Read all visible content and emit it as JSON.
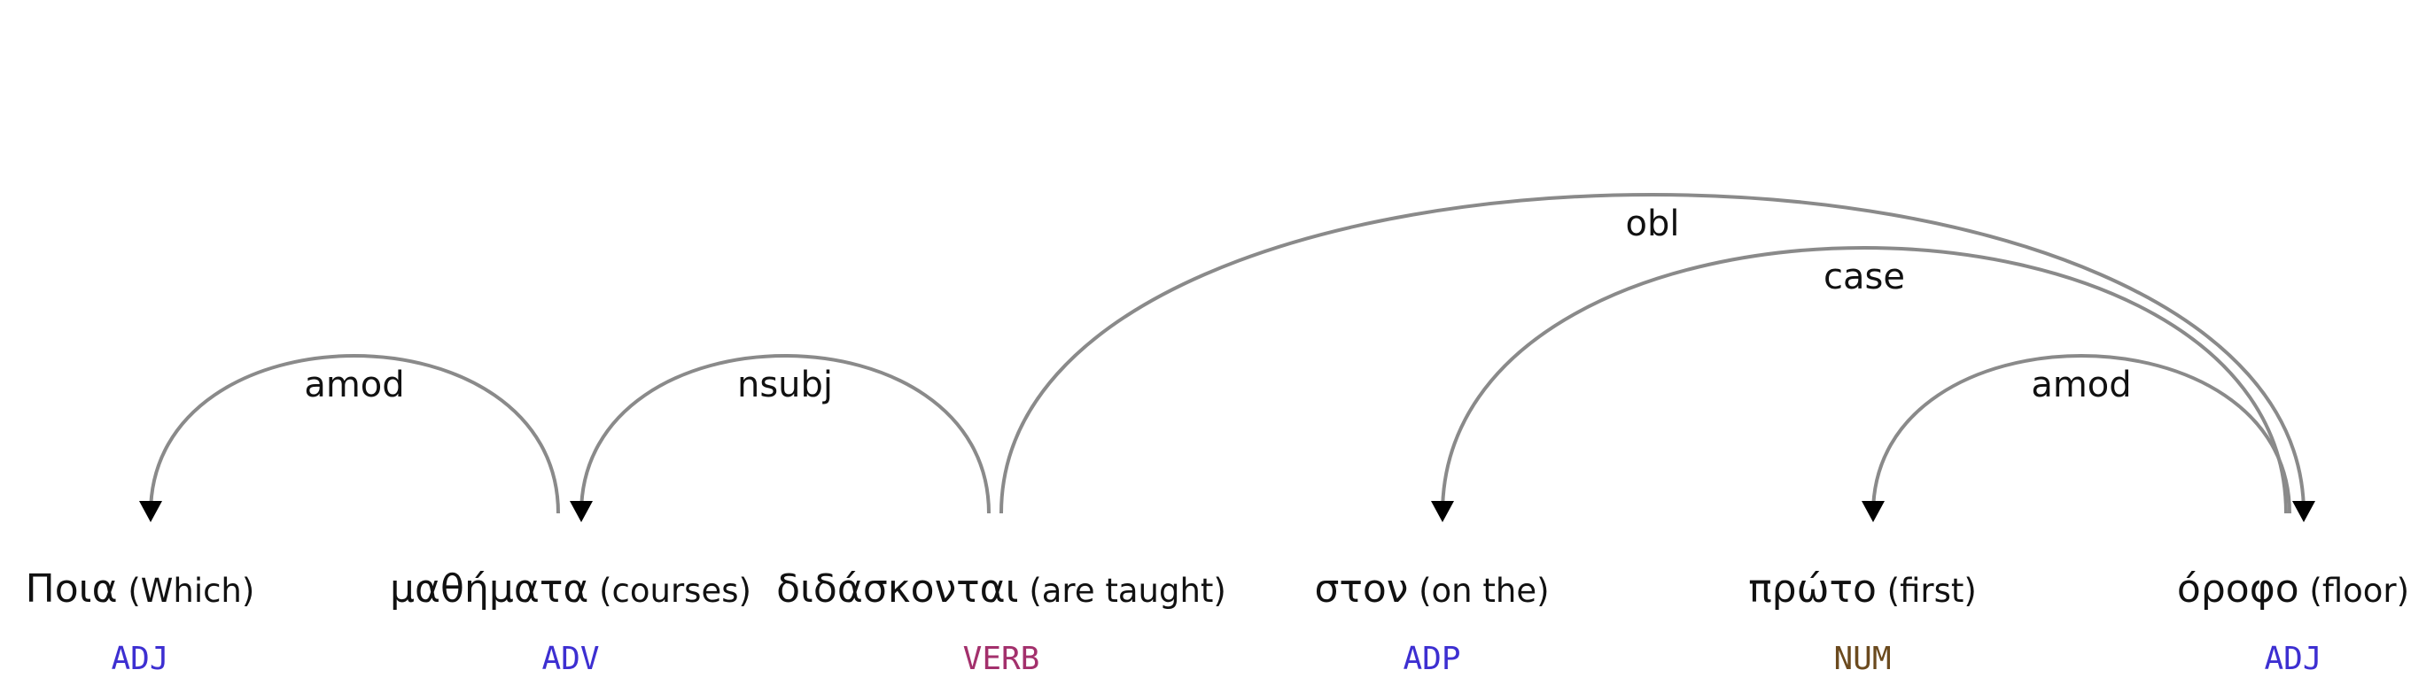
{
  "tokens": [
    {
      "word": "Ποια",
      "gloss": "(Which)",
      "tag": "ADJ",
      "tag_color": "#3d2fd1"
    },
    {
      "word": "μαθήματα",
      "gloss": "(courses)",
      "tag": "ADV",
      "tag_color": "#3d2fd1"
    },
    {
      "word": "διδάσκονται",
      "gloss": "(are taught)",
      "tag": "VERB",
      "tag_color": "#a3306c"
    },
    {
      "word": "στον",
      "gloss": "(on the)",
      "tag": "ADP",
      "tag_color": "#3d2fd1"
    },
    {
      "word": "πρώτο",
      "gloss": "(first)",
      "tag": "NUM",
      "tag_color": "#6b4a1e"
    },
    {
      "word": "όροφο",
      "gloss": "(floor)",
      "tag": "ADJ",
      "tag_color": "#3d2fd1"
    }
  ],
  "arcs": [
    {
      "label": "amod",
      "from": 1,
      "to": 0
    },
    {
      "label": "nsubj",
      "from": 2,
      "to": 1
    },
    {
      "label": "obl",
      "from": 2,
      "to": 5
    },
    {
      "label": "case",
      "from": 5,
      "to": 3
    },
    {
      "label": "amod",
      "from": 5,
      "to": 4
    }
  ]
}
